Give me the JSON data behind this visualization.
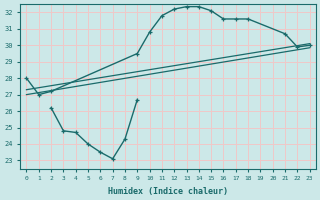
{
  "bg_color": "#cce8e8",
  "grid_color": "#f0c8c8",
  "line_color": "#1a6b6b",
  "xlabel": "Humidex (Indice chaleur)",
  "xlim": [
    -0.5,
    23.5
  ],
  "ylim": [
    22.5,
    32.5
  ],
  "xticks": [
    0,
    1,
    2,
    3,
    4,
    5,
    6,
    7,
    8,
    9,
    10,
    11,
    12,
    13,
    14,
    15,
    16,
    17,
    18,
    19,
    20,
    21,
    22,
    23
  ],
  "yticks": [
    23,
    24,
    25,
    26,
    27,
    28,
    29,
    30,
    31,
    32
  ],
  "curve1_x": [
    0,
    1,
    2,
    9,
    10,
    11,
    12,
    13,
    14,
    15,
    16,
    17,
    18,
    21,
    22,
    23
  ],
  "curve1_y": [
    28.0,
    27.0,
    27.2,
    29.5,
    30.8,
    31.8,
    32.2,
    32.35,
    32.35,
    32.1,
    31.6,
    31.6,
    31.6,
    30.7,
    29.9,
    30.0
  ],
  "curve2_x": [
    0,
    23
  ],
  "curve2_y": [
    27.3,
    30.1
  ],
  "curve3_x": [
    0,
    23
  ],
  "curve3_y": [
    27.0,
    29.85
  ],
  "curve4_x": [
    2,
    3,
    4,
    5,
    6,
    7,
    8,
    9
  ],
  "curve4_y": [
    26.2,
    24.8,
    24.7,
    24.0,
    23.5,
    23.1,
    24.3,
    26.7
  ],
  "figsize": [
    3.2,
    2.0
  ],
  "dpi": 100
}
